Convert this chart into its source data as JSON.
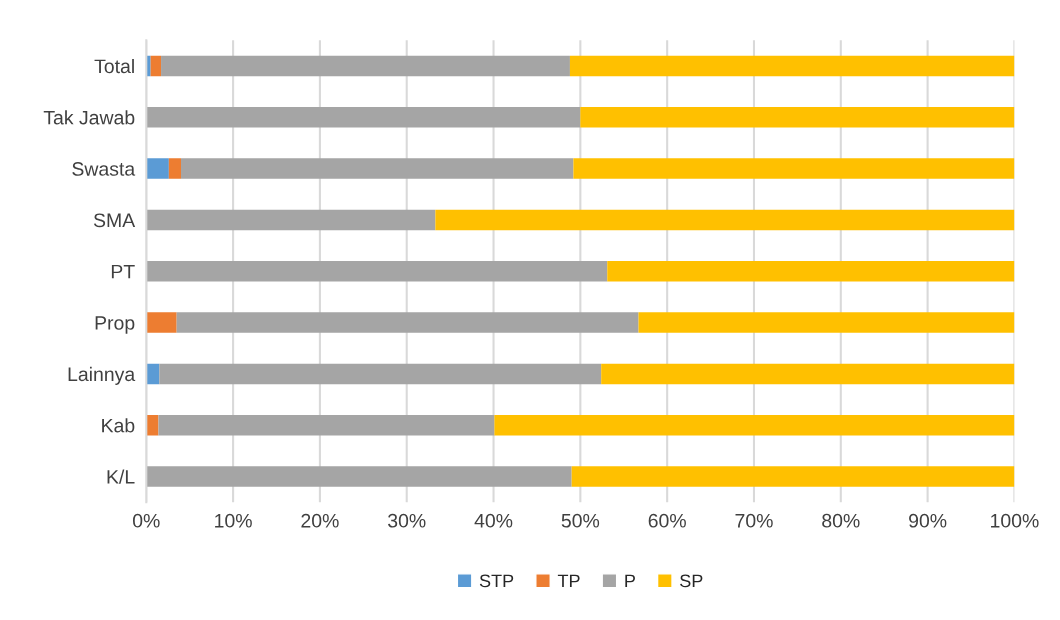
{
  "chart_data": {
    "type": "bar",
    "orientation": "horizontal",
    "stacked": true,
    "categories": [
      "Total",
      "Tak Jawab",
      "Swasta",
      "SMA",
      "PT",
      "Prop",
      "Lainnya",
      "Kab",
      "K/L"
    ],
    "series": [
      {
        "name": "STP",
        "color": "#5b9bd5",
        "values": [
          0.5,
          0,
          2.6,
          0,
          0,
          0,
          1.5,
          0,
          0
        ]
      },
      {
        "name": "TP",
        "color": "#ed7d31",
        "values": [
          1.2,
          0,
          1.4,
          0,
          0,
          3.5,
          0,
          1.4,
          0
        ]
      },
      {
        "name": "P",
        "color": "#a5a5a5",
        "values": [
          47.1,
          50,
          45.2,
          33.3,
          53.1,
          53.2,
          50.9,
          38.7,
          49
        ]
      },
      {
        "name": "SP",
        "color": "#ffc000",
        "values": [
          51.2,
          50,
          50.8,
          66.7,
          46.9,
          43.3,
          47.6,
          59.9,
          51
        ]
      }
    ],
    "xlim": [
      0,
      100
    ],
    "xticks": [
      {
        "value": 0,
        "label": "0%"
      },
      {
        "value": 10,
        "label": "10%"
      },
      {
        "value": 20,
        "label": "20%"
      },
      {
        "value": 30,
        "label": "30%"
      },
      {
        "value": 40,
        "label": "40%"
      },
      {
        "value": 50,
        "label": "50%"
      },
      {
        "value": 60,
        "label": "60%"
      },
      {
        "value": 70,
        "label": "70%"
      },
      {
        "value": 80,
        "label": "80%"
      },
      {
        "value": 90,
        "label": "90%"
      },
      {
        "value": 100,
        "label": "100%"
      }
    ],
    "grid": "x",
    "legend": "bottom"
  }
}
